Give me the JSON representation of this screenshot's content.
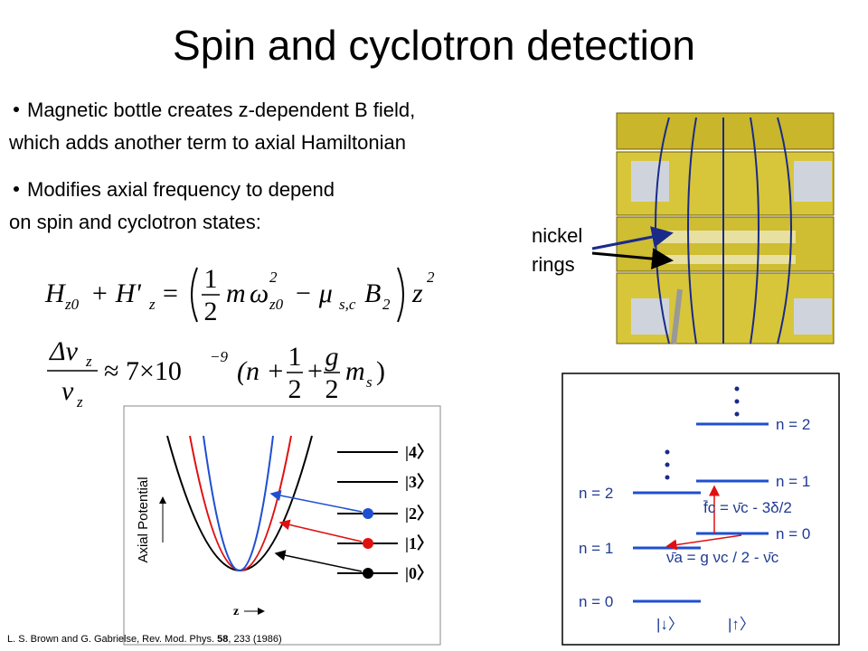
{
  "header": {
    "title": "Spin and cyclotron detection"
  },
  "bullets": [
    {
      "line1": "Magnetic bottle creates z-dependent B field,",
      "line2": "which adds another term to axial Hamiltonian"
    },
    {
      "line1": "Modifies axial frequency to depend",
      "line2": "on spin and cyclotron states:"
    }
  ],
  "equation1": {
    "H": "H",
    "H_sub": "z0",
    "plus_H": "+ H'",
    "H2_sub": "z",
    "equals": "=",
    "num": "1",
    "den": "2",
    "m": "m",
    "omega": "ω",
    "omega_sup": "2",
    "omega_sub": "z0",
    "minus_mu": "− μ",
    "mu_sub": "s,c",
    "B": "B",
    "B_sub": "2",
    "z": "z",
    "z_sup": "2"
  },
  "equation2": {
    "dnu": "Δν",
    "dnu_sub": "z",
    "nu": "ν",
    "nu_sub": "z",
    "approx": "≈ 7×10",
    "exp": "−9",
    "open": "(n +",
    "num1": "1",
    "den1": "2",
    "plus": "+",
    "num2": "g",
    "den2": "2",
    "m": "m",
    "m_sub": "s",
    "close": ")"
  },
  "trap_figure": {
    "label_line1": "nickel",
    "label_line2": "rings"
  },
  "potential_figure": {
    "y_label": "Axial Potential",
    "x_label": "z",
    "kets": [
      "|4〉",
      "|3〉",
      "|2〉",
      "|1〉",
      "|0〉"
    ]
  },
  "level_figure": {
    "right_levels": [
      "n = 2",
      "n = 1",
      "n = 0"
    ],
    "left_levels": [
      "n = 2",
      "n = 1",
      "n = 0"
    ],
    "fc_relation": "f̄c = ν̄c - 3δ/2",
    "nua_relation": "ν̄a = g νc / 2 - ν̄c",
    "spin_down": "|↓〉",
    "spin_up": "|↑〉"
  },
  "citation": {
    "authors": "L. S. Brown and G. Gabrielse, Rev. Mod. Phys. ",
    "volume": "58",
    "rest": ", 233 (1986)"
  }
}
